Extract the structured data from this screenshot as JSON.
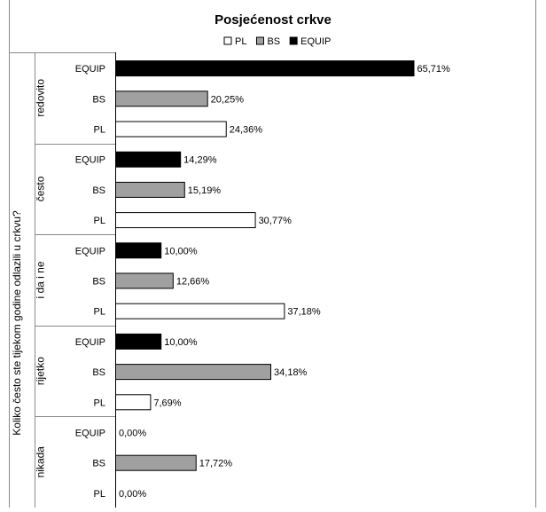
{
  "chart_data": {
    "type": "bar",
    "orientation": "horizontal",
    "title": "Posjećenost crkve",
    "ylabel": "Koliko često ste tijekom godine odlazili u crkvu?",
    "legend_position": "top",
    "xlim": [
      0,
      100
    ],
    "grid": false,
    "categories": [
      "redovito",
      "često",
      "i da i ne",
      "rijetko",
      "nikada"
    ],
    "series_order_top_to_bottom": [
      "EQUIP",
      "BS",
      "PL"
    ],
    "legend_order": [
      "PL",
      "BS",
      "EQUIP"
    ],
    "series": [
      {
        "name": "PL",
        "color": "#ffffff",
        "values": [
          24.36,
          30.77,
          37.18,
          7.69,
          0.0
        ],
        "labels": [
          "24,36%",
          "30,77%",
          "37,18%",
          "7,69%",
          "0,00%"
        ]
      },
      {
        "name": "BS",
        "color": "#a0a0a0",
        "values": [
          20.25,
          15.19,
          12.66,
          34.18,
          17.72
        ],
        "labels": [
          "20,25%",
          "15,19%",
          "12,66%",
          "34,18%",
          "17,72%"
        ]
      },
      {
        "name": "EQUIP",
        "color": "#000000",
        "values": [
          65.71,
          14.29,
          10.0,
          10.0,
          0.0
        ],
        "labels": [
          "65,71%",
          "14,29%",
          "10,00%",
          "10,00%",
          "0,00%"
        ]
      }
    ]
  }
}
